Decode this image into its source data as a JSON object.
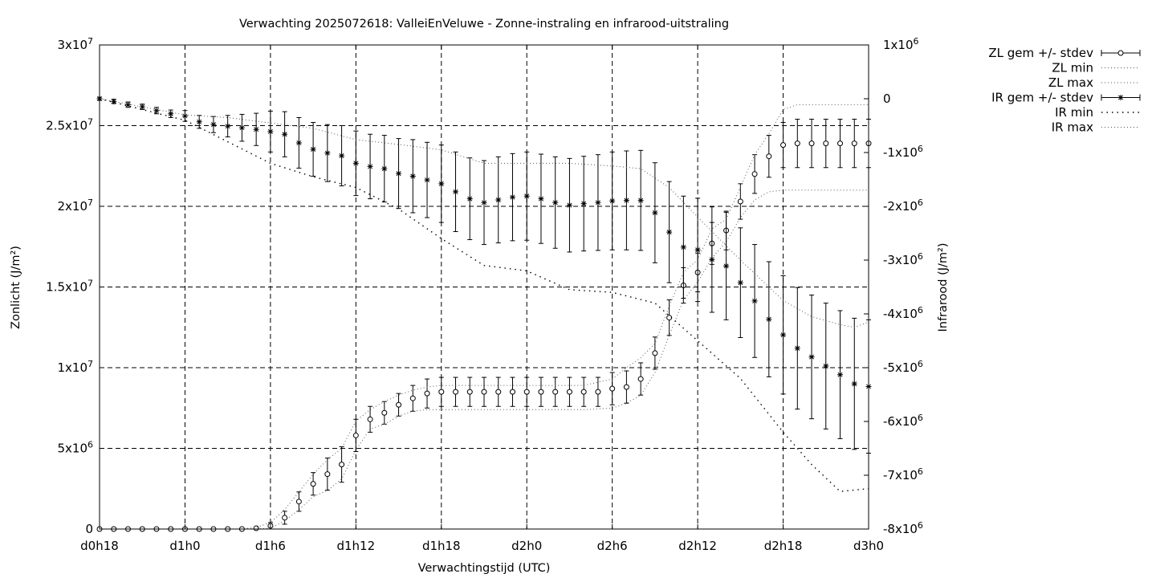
{
  "chart_data": {
    "type": "line",
    "title": "Verwachting 2025072618: ValleiEnVeluwe - Zonne-instraling en infrarood-uitstraling",
    "xlabel": "Verwachtingstijd (UTC)",
    "ylabel": "Zonlicht (J/m²)",
    "y2label": "Infrarood (J/m²)",
    "xlim": [
      0,
      54
    ],
    "ylim": [
      0,
      30000000
    ],
    "y2lim": [
      -8000000,
      1000000
    ],
    "grid": true,
    "legend_position": "outside-top-right",
    "x_ticks": [
      {
        "x": 0,
        "label": "d0h18"
      },
      {
        "x": 6,
        "label": "d1h0"
      },
      {
        "x": 12,
        "label": "d1h6"
      },
      {
        "x": 18,
        "label": "d1h12"
      },
      {
        "x": 24,
        "label": "d1h18"
      },
      {
        "x": 30,
        "label": "d2h0"
      },
      {
        "x": 36,
        "label": "d2h6"
      },
      {
        "x": 42,
        "label": "d2h12"
      },
      {
        "x": 48,
        "label": "d2h18"
      },
      {
        "x": 54,
        "label": "d3h0"
      }
    ],
    "y_ticks": [
      {
        "v": 0,
        "m": "0",
        "e": ""
      },
      {
        "v": 5000000,
        "m": "5x10",
        "e": "6"
      },
      {
        "v": 10000000,
        "m": "1x10",
        "e": "7"
      },
      {
        "v": 15000000,
        "m": "1.5x10",
        "e": "7"
      },
      {
        "v": 20000000,
        "m": "2x10",
        "e": "7"
      },
      {
        "v": 25000000,
        "m": "2.5x10",
        "e": "7"
      },
      {
        "v": 30000000,
        "m": "3x10",
        "e": "7"
      }
    ],
    "y2_ticks": [
      {
        "v": 1000000,
        "m": "1x10",
        "e": "6"
      },
      {
        "v": 0,
        "m": "0",
        "e": ""
      },
      {
        "v": -1000000,
        "m": "-1x10",
        "e": "6"
      },
      {
        "v": -2000000,
        "m": "-2x10",
        "e": "6"
      },
      {
        "v": -3000000,
        "m": "-3x10",
        "e": "6"
      },
      {
        "v": -4000000,
        "m": "-4x10",
        "e": "6"
      },
      {
        "v": -5000000,
        "m": "-5x10",
        "e": "6"
      },
      {
        "v": -6000000,
        "m": "-6x10",
        "e": "6"
      },
      {
        "v": -7000000,
        "m": "-7x10",
        "e": "6"
      },
      {
        "v": -8000000,
        "m": "-8x10",
        "e": "6"
      }
    ],
    "series": [
      {
        "name": "ZL gem +/- stdev",
        "axis": "y",
        "x": [
          0,
          1,
          2,
          3,
          4,
          5,
          6,
          7,
          8,
          9,
          10,
          11,
          12,
          13,
          14,
          15,
          16,
          17,
          18,
          19,
          20,
          21,
          22,
          23,
          24,
          25,
          26,
          27,
          28,
          29,
          30,
          31,
          32,
          33,
          34,
          35,
          36,
          37,
          38,
          39,
          40,
          41,
          42,
          43,
          44,
          45,
          46,
          47,
          48,
          49,
          50,
          51,
          52,
          53,
          54
        ],
        "mean": [
          0,
          0,
          0,
          0,
          0,
          0,
          0,
          0,
          0,
          0,
          0,
          50000,
          200000,
          700000,
          1700000,
          2800000,
          3400000,
          4000000,
          5800000,
          6800000,
          7200000,
          7700000,
          8100000,
          8400000,
          8500000,
          8500000,
          8500000,
          8500000,
          8500000,
          8500000,
          8500000,
          8500000,
          8500000,
          8500000,
          8500000,
          8500000,
          8700000,
          8800000,
          9300000,
          10900000,
          13100000,
          15100000,
          15900000,
          17700000,
          18500000,
          20300000,
          22000000,
          23100000,
          23800000,
          23900000,
          23900000,
          23900000,
          23900000,
          23900000,
          23900000
        ],
        "stdev": [
          0,
          0,
          0,
          0,
          0,
          0,
          0,
          0,
          0,
          0,
          0,
          50000,
          200000,
          400000,
          600000,
          700000,
          1000000,
          1100000,
          1000000,
          800000,
          700000,
          700000,
          800000,
          900000,
          900000,
          900000,
          900000,
          900000,
          900000,
          900000,
          900000,
          900000,
          900000,
          900000,
          900000,
          900000,
          1000000,
          1000000,
          1000000,
          1000000,
          1100000,
          1100000,
          1200000,
          1300000,
          1200000,
          1100000,
          1200000,
          1300000,
          1400000,
          1500000,
          1500000,
          1500000,
          1500000,
          1500000,
          1500000
        ]
      },
      {
        "name": "ZL min",
        "axis": "y",
        "x": [
          0,
          10,
          11,
          12,
          13,
          14,
          15,
          16,
          17,
          18,
          19,
          20,
          21,
          22,
          23,
          24,
          30,
          34,
          36,
          37,
          38,
          39,
          40,
          41,
          42,
          43,
          44,
          45,
          46,
          47,
          48,
          49,
          50,
          51,
          52,
          53,
          54
        ],
        "values": [
          0,
          0,
          0,
          50000,
          500000,
          1200000,
          2000000,
          2400000,
          3100000,
          4900000,
          6200000,
          6500000,
          7000000,
          7300000,
          7400000,
          7400000,
          7400000,
          7400000,
          7500000,
          7800000,
          8300000,
          9700000,
          12000000,
          14200000,
          15300000,
          16800000,
          17800000,
          19300000,
          20400000,
          20900000,
          21000000,
          21000000,
          21000000,
          21000000,
          21000000,
          21000000,
          21000000
        ]
      },
      {
        "name": "ZL max",
        "axis": "y",
        "x": [
          0,
          10,
          11,
          12,
          13,
          14,
          15,
          16,
          17,
          18,
          19,
          20,
          21,
          22,
          23,
          24,
          30,
          34,
          36,
          37,
          38,
          39,
          40,
          41,
          42,
          43,
          44,
          45,
          46,
          47,
          48,
          49,
          50,
          51,
          52,
          53,
          54
        ],
        "values": [
          0,
          0,
          100000,
          400000,
          1200000,
          2300000,
          3400000,
          4300000,
          5000000,
          6700000,
          7400000,
          7900000,
          8300000,
          8600000,
          8800000,
          8900000,
          8900000,
          8900000,
          9300000,
          10000000,
          10600000,
          11500000,
          13800000,
          15900000,
          16700000,
          18600000,
          19200000,
          21200000,
          23200000,
          24500000,
          26000000,
          26300000,
          26300000,
          26300000,
          26300000,
          26300000,
          26300000
        ]
      },
      {
        "name": "IR gem +/- stdev",
        "axis": "y2",
        "x": [
          0,
          1,
          2,
          3,
          4,
          5,
          6,
          7,
          8,
          9,
          10,
          11,
          12,
          13,
          14,
          15,
          16,
          17,
          18,
          19,
          20,
          21,
          22,
          23,
          24,
          25,
          26,
          27,
          28,
          29,
          30,
          31,
          32,
          33,
          34,
          35,
          36,
          37,
          38,
          39,
          40,
          41,
          42,
          43,
          44,
          45,
          46,
          47,
          48,
          49,
          50,
          51,
          52,
          53,
          54
        ],
        "mean": [
          0,
          -50000,
          -110000,
          -150000,
          -220000,
          -280000,
          -320000,
          -430000,
          -480000,
          -510000,
          -540000,
          -570000,
          -610000,
          -660000,
          -820000,
          -940000,
          -1010000,
          -1060000,
          -1200000,
          -1260000,
          -1300000,
          -1390000,
          -1440000,
          -1510000,
          -1580000,
          -1730000,
          -1860000,
          -1930000,
          -1880000,
          -1830000,
          -1810000,
          -1860000,
          -1930000,
          -1980000,
          -1950000,
          -1930000,
          -1900000,
          -1890000,
          -1890000,
          -2120000,
          -2480000,
          -2760000,
          -2810000,
          -2990000,
          -3110000,
          -3420000,
          -3760000,
          -4100000,
          -4390000,
          -4640000,
          -4800000,
          -4970000,
          -5130000,
          -5300000,
          -5350000
        ],
        "stdev": [
          30000,
          40000,
          50000,
          50000,
          60000,
          70000,
          100000,
          120000,
          150000,
          200000,
          250000,
          300000,
          380000,
          420000,
          470000,
          500000,
          530000,
          560000,
          600000,
          600000,
          620000,
          650000,
          680000,
          700000,
          720000,
          740000,
          760000,
          780000,
          800000,
          810000,
          820000,
          830000,
          850000,
          870000,
          880000,
          890000,
          910000,
          920000,
          930000,
          930000,
          940000,
          950000,
          960000,
          980000,
          1000000,
          1020000,
          1050000,
          1070000,
          1100000,
          1130000,
          1150000,
          1170000,
          1190000,
          1220000,
          1240000
        ]
      },
      {
        "name": "IR min",
        "axis": "y2",
        "x": [
          0,
          6,
          9,
          12,
          15,
          18,
          21,
          24,
          27,
          30,
          33,
          36,
          39,
          42,
          45,
          48,
          50,
          52,
          54
        ],
        "values": [
          0,
          -400000,
          -800000,
          -1200000,
          -1450000,
          -1650000,
          -2050000,
          -2600000,
          -3100000,
          -3200000,
          -3550000,
          -3600000,
          -3800000,
          -4500000,
          -5200000,
          -6200000,
          -6800000,
          -7300000,
          -7250000
        ]
      },
      {
        "name": "IR max",
        "axis": "y2",
        "x": [
          0,
          6,
          9,
          12,
          15,
          18,
          21,
          24,
          27,
          30,
          33,
          36,
          38,
          40,
          42,
          45,
          48,
          50,
          52,
          53,
          54
        ],
        "values": [
          0,
          -300000,
          -350000,
          -450000,
          -550000,
          -760000,
          -850000,
          -950000,
          -1200000,
          -1200000,
          -1200000,
          -1250000,
          -1300000,
          -1650000,
          -2200000,
          -3000000,
          -3750000,
          -4050000,
          -4200000,
          -4250000,
          -4150000
        ]
      }
    ]
  }
}
